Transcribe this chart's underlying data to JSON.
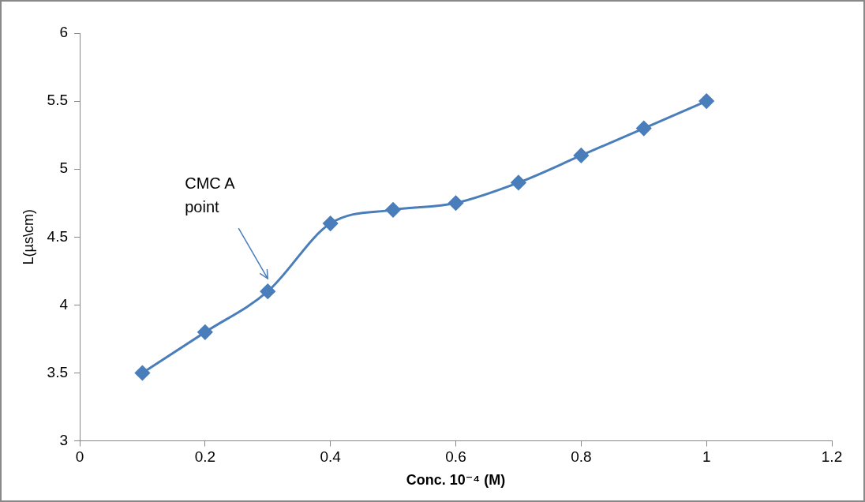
{
  "chart_data": {
    "type": "line",
    "xlabel": "Conc. 10⁻⁴ (M)",
    "ylabel": "L(µs\\cm)",
    "x": [
      0.1,
      0.2,
      0.3,
      0.4,
      0.5,
      0.6,
      0.7,
      0.8,
      0.9,
      1.0
    ],
    "series": [
      {
        "color": "#4a7ebb",
        "values": [
          3.5,
          3.8,
          4.1,
          4.6,
          4.7,
          4.75,
          4.9,
          5.1,
          5.3,
          5.5
        ]
      }
    ],
    "xlim": [
      0,
      1.2
    ],
    "xticks": [
      0,
      0.2,
      0.4,
      0.6,
      0.8,
      1,
      1.2
    ],
    "ylim": [
      3,
      6
    ],
    "yticks": [
      3,
      3.5,
      4,
      4.5,
      5,
      5.5,
      6
    ],
    "grid": false,
    "legend": false,
    "marker": "diamond",
    "line_style": "solid",
    "annotations": [
      "CMC A point"
    ]
  }
}
